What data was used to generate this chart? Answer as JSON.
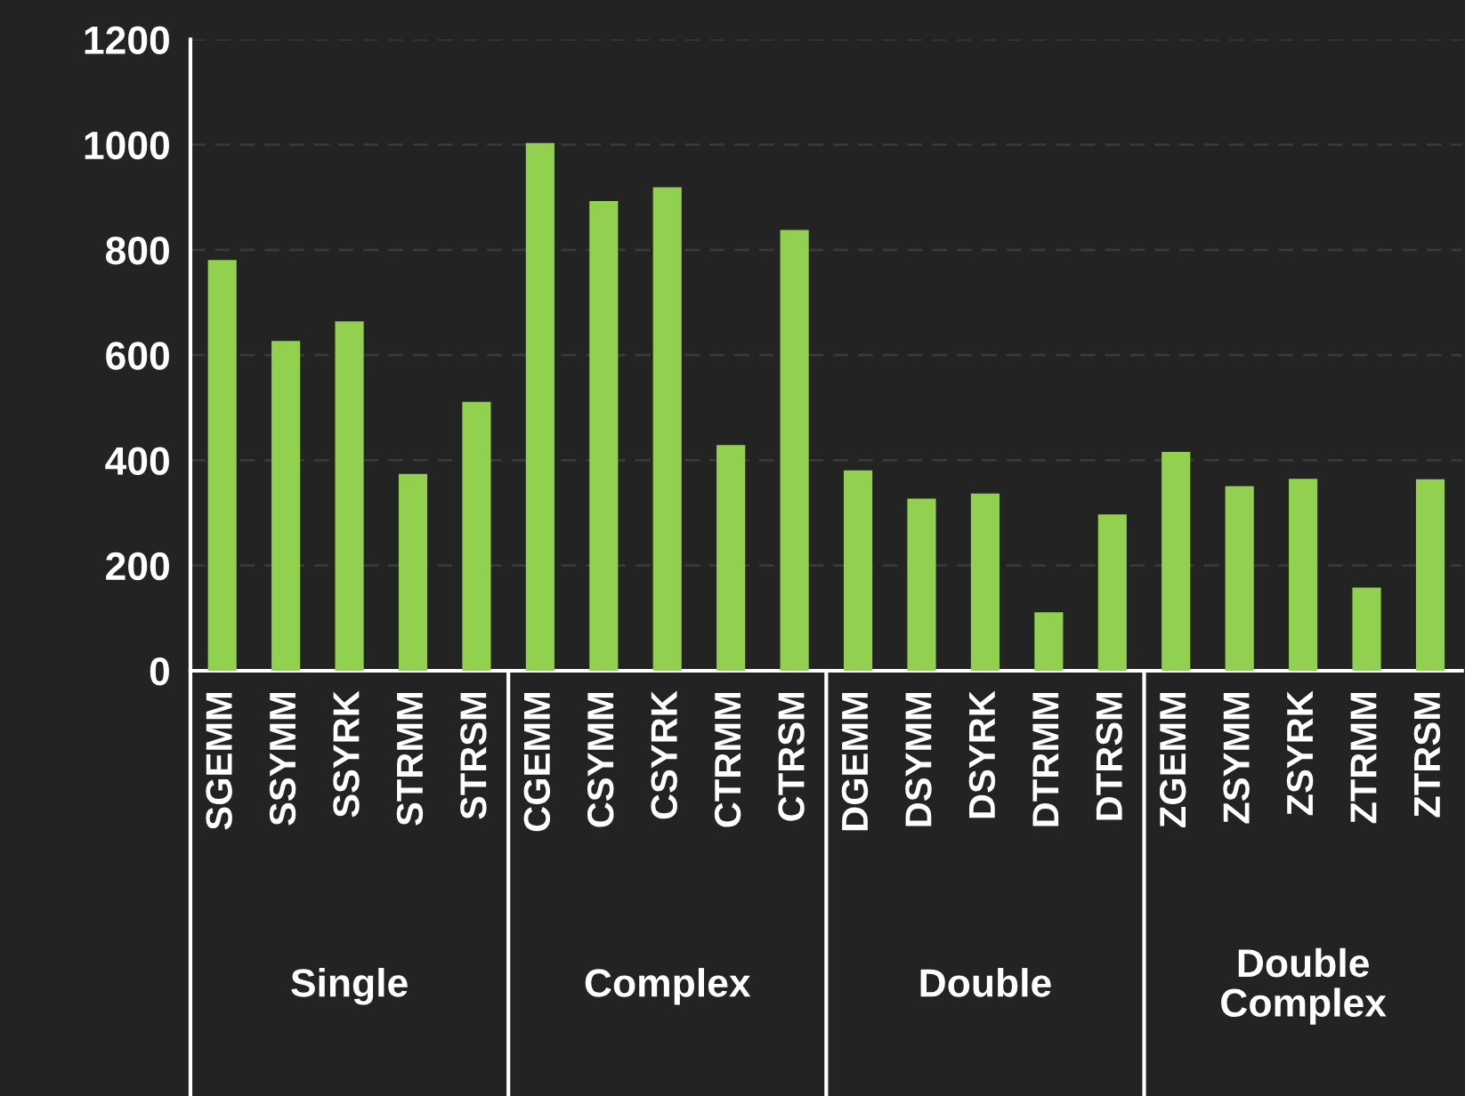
{
  "chart_data": {
    "type": "bar",
    "categories": [
      "SGEMM",
      "SSYMM",
      "SSYRK",
      "STRMM",
      "STRSM",
      "CGEMM",
      "CSYMM",
      "CSYRK",
      "CTRMM",
      "CTRSM",
      "DGEMM",
      "DSYMM",
      "DSYRK",
      "DTRMM",
      "DTRSM",
      "ZGEMM",
      "ZSYMM",
      "ZSYRK",
      "ZTRMM",
      "ZTRSM"
    ],
    "values": [
      781,
      627,
      664,
      374,
      511,
      1003,
      893,
      919,
      429,
      838,
      381,
      327,
      337,
      111,
      297,
      416,
      351,
      365,
      158,
      364
    ],
    "color": "#92d050",
    "ylim": [
      0,
      1200
    ],
    "yticks": [
      0,
      200,
      400,
      600,
      800,
      1000,
      1200
    ],
    "grid": "y",
    "annotations": [
      "Single",
      "Complex",
      "Double",
      "Double\nComplex"
    ]
  }
}
